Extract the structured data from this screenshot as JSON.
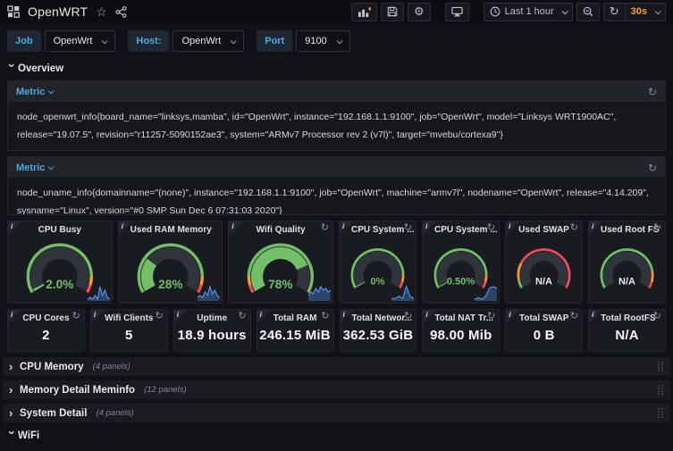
{
  "colors": {
    "green": "#73bf69",
    "orange": "#ff9830",
    "red": "#f2495c",
    "blue": "#4fa8e0",
    "spark": "#5794f2"
  },
  "nav": {
    "title": "OpenWRT",
    "time_range": "Last 1 hour",
    "refresh_interval": "30s"
  },
  "variables": [
    {
      "label": "Job",
      "value": "OpenWrt"
    },
    {
      "label": "Host:",
      "value": "OpenWrt"
    },
    {
      "label": "Port",
      "value": "9100"
    }
  ],
  "overview_row": {
    "title": "Overview"
  },
  "metric_panels": [
    {
      "title": "Metric",
      "query": "node_openwrt_info{board_name=\"linksys,mamba\", id=\"OpenWrt\", instance=\"192.168.1.1:9100\", job=\"OpenWrt\", model=\"Linksys WRT1900AC\", release=\"19.07.5\", revision=\"r11257-5090152ae3\", system=\"ARMv7 Processor rev 2 (v7l)\", target=\"mvebu/cortexa9\"}"
    },
    {
      "title": "Metric",
      "query": "node_uname_info{domainname=\"(none)\", instance=\"192.168.1.1:9100\", job=\"OpenWrt\", machine=\"armv7l\", nodename=\"OpenWrt\", release=\"4.14.209\", sysname=\"Linux\", version=\"#0 SMP Sun Dec 6 07:31:03 2020\"}"
    }
  ],
  "gauges": [
    {
      "title": "CPU Busy",
      "value": "2.0%",
      "fill": 0.02,
      "value_color": "#73bf69",
      "refresh": false,
      "ring": [
        [
          "#73bf69",
          0.87
        ],
        [
          "#ff9830",
          0.94
        ],
        [
          "#f2495c",
          1
        ]
      ],
      "spark": [
        1,
        2,
        1,
        3,
        1,
        8,
        3,
        6,
        2,
        1
      ]
    },
    {
      "title": "Used RAM Memory",
      "value": "28%",
      "fill": 0.28,
      "value_color": "#73bf69",
      "refresh": false,
      "ring": [
        [
          "#73bf69",
          0.87
        ],
        [
          "#ff9830",
          0.94
        ],
        [
          "#f2495c",
          1
        ]
      ],
      "spark": [
        2,
        3,
        2,
        5,
        3,
        8,
        4,
        6,
        3,
        2
      ]
    },
    {
      "title": "Wifi Quality",
      "value": "78%",
      "fill": 0.78,
      "value_color": "#73bf69",
      "refresh": true,
      "ring": [
        [
          "#f2495c",
          0.06
        ],
        [
          "#ff9830",
          0.13
        ],
        [
          "#73bf69",
          1
        ]
      ],
      "spark": [
        3,
        5,
        4,
        7,
        5,
        8,
        6,
        7,
        5,
        6
      ]
    },
    {
      "title": "CPU System ...",
      "value": "0%",
      "fill": 0.006,
      "value_color": "#73bf69",
      "refresh": true,
      "ring": [
        [
          "#73bf69",
          0.87
        ],
        [
          "#ff9830",
          0.94
        ],
        [
          "#f2495c",
          1
        ]
      ],
      "spark": [
        1,
        1,
        2,
        1,
        6,
        2,
        1
      ]
    },
    {
      "title": "CPU System ...",
      "value": "0.50%",
      "fill": 0.012,
      "value_color": "#73bf69",
      "refresh": true,
      "ring": [
        [
          "#73bf69",
          0.87
        ],
        [
          "#ff9830",
          0.94
        ],
        [
          "#f2495c",
          1
        ]
      ],
      "spark": [
        1,
        2,
        1,
        3,
        8,
        9,
        8
      ]
    },
    {
      "title": "Used SWAP",
      "value": "N/A",
      "fill": 0,
      "value_color": "#e9eaec",
      "refresh": true,
      "ring": [
        [
          "#73bf69",
          0.08
        ],
        [
          "#ff9830",
          0.24
        ],
        [
          "#f2495c",
          1
        ]
      ],
      "spark": null
    },
    {
      "title": "Used Root FS",
      "value": "N/A",
      "fill": 0,
      "value_color": "#e9eaec",
      "refresh": true,
      "ring": [
        [
          "#73bf69",
          0.84
        ],
        [
          "#ff9830",
          0.94
        ],
        [
          "#f2495c",
          1
        ]
      ],
      "spark": null
    }
  ],
  "stats": [
    {
      "title": "CPU Cores",
      "value": "2"
    },
    {
      "title": "Wifi Clients",
      "value": "5"
    },
    {
      "title": "Uptime",
      "value": "18.9 hours"
    },
    {
      "title": "Total RAM",
      "value": "246.15 MiB"
    },
    {
      "title": "Total Networ...",
      "value": "362.53 GiB"
    },
    {
      "title": "Total NAT Tr...",
      "value": "98.00 Mib"
    },
    {
      "title": "Total SWAP",
      "value": "0 B"
    },
    {
      "title": "Total RootFS",
      "value": "N/A"
    }
  ],
  "collapsed_rows": [
    {
      "title": "CPU Memory",
      "count": "(4 panels)"
    },
    {
      "title": "Memory Detail Meminfo",
      "count": "(12 panels)"
    },
    {
      "title": "System Detail",
      "count": "(4 panels)"
    }
  ],
  "wifi_row": {
    "title": "WiFi"
  }
}
